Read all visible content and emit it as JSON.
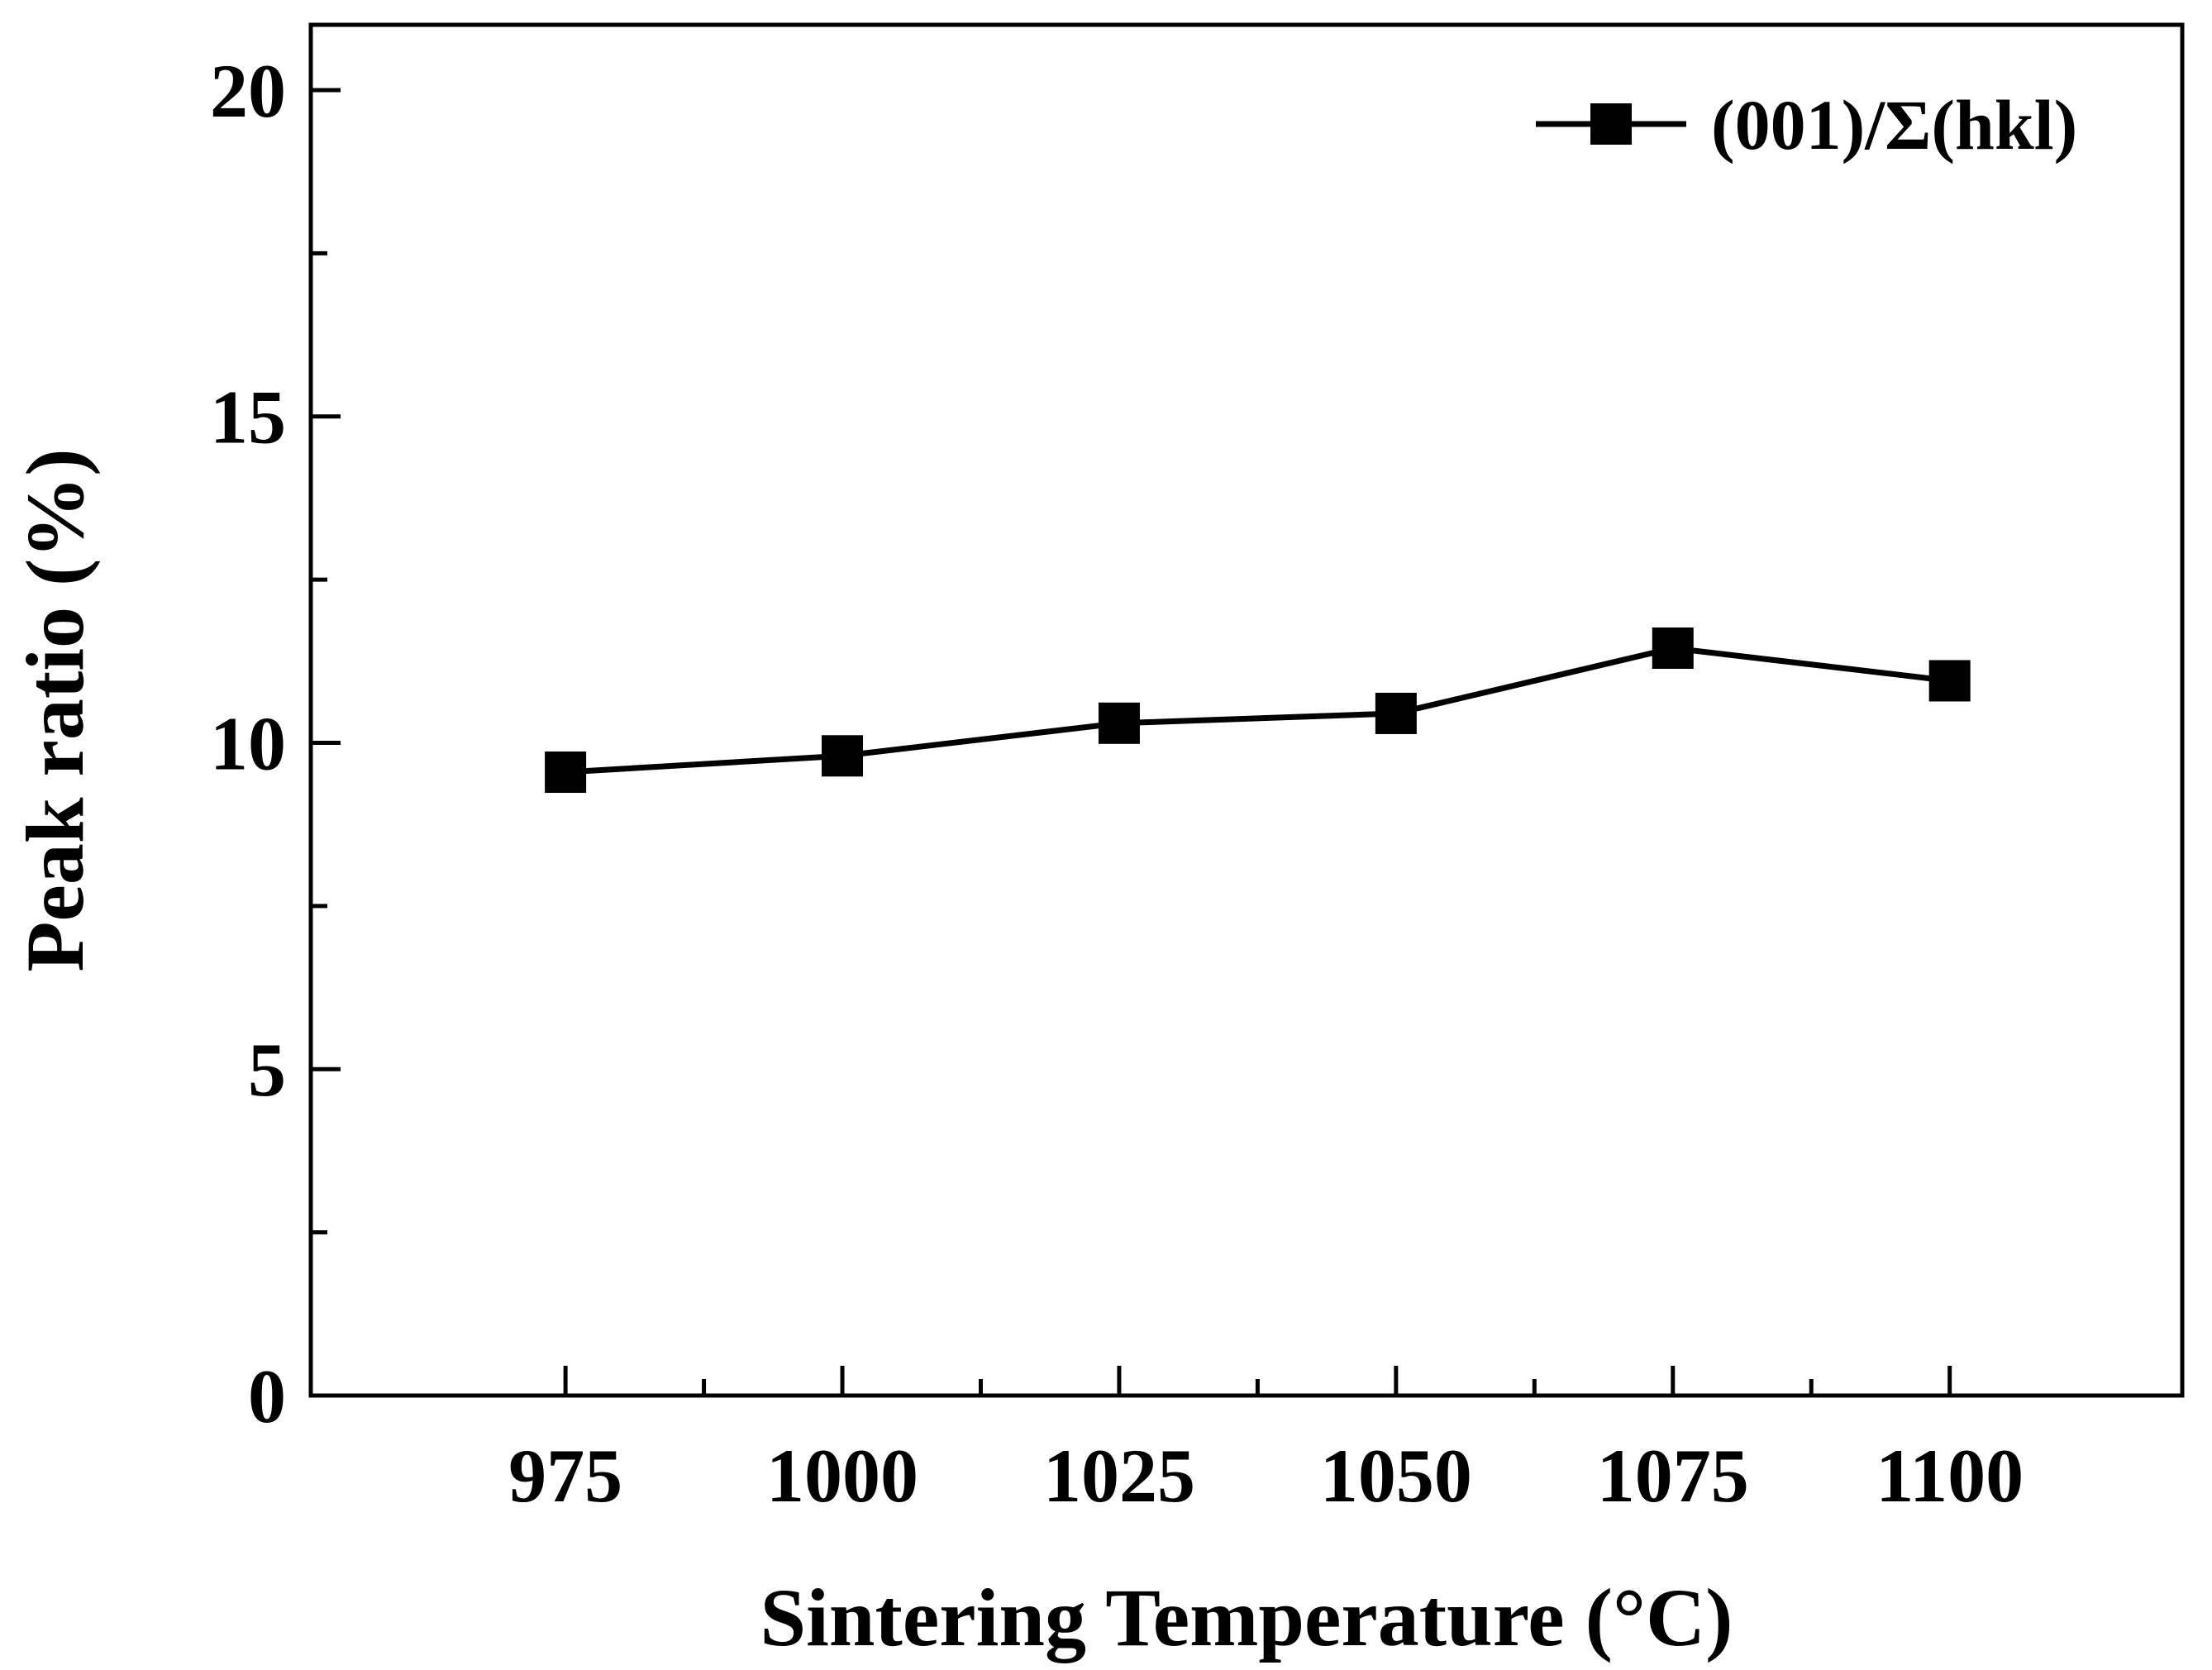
{
  "chart_data": {
    "type": "line",
    "title": "",
    "xlabel": "Sintering Temperature (°C)",
    "ylabel": "Peak ratio (%)",
    "xlim": [
      952,
      1121
    ],
    "ylim": [
      0,
      21
    ],
    "x_major_ticks": [
      975,
      1000,
      1025,
      1050,
      1075,
      1100
    ],
    "x_minor_ticks": [
      987.5,
      1012.5,
      1037.5,
      1062.5,
      1087.5
    ],
    "y_major_ticks": [
      0,
      5,
      10,
      15,
      20
    ],
    "y_minor_ticks": [
      2.5,
      7.5,
      12.5,
      17.5
    ],
    "x_tick_labels": [
      "975",
      "1000",
      "1025",
      "1050",
      "1075",
      "1100"
    ],
    "y_tick_labels": [
      "0",
      "5",
      "10",
      "15",
      "20"
    ],
    "grid": false,
    "legend_position": "top-right",
    "series": [
      {
        "name": "(001)/Σ(hkl)",
        "marker": "square",
        "color": "#000000",
        "x": [
          975,
          1000,
          1025,
          1050,
          1075,
          1100
        ],
        "values": [
          9.55,
          9.8,
          10.3,
          10.45,
          11.45,
          10.95
        ]
      }
    ]
  }
}
